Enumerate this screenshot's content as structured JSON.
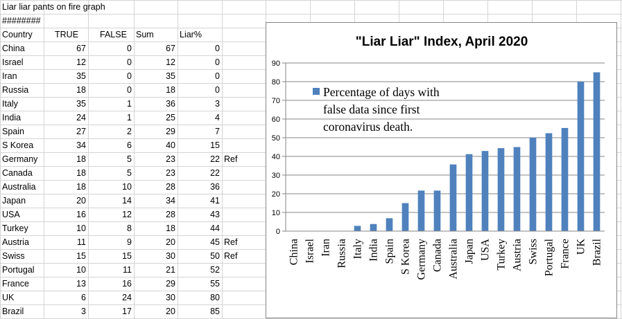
{
  "sheet": {
    "title": "Liar liar pants on fire graph",
    "hash_cell": "########",
    "headers": [
      "Country",
      "TRUE",
      "FALSE",
      "Sum",
      "Liar%"
    ],
    "rows": [
      {
        "country": "China",
        "true": "67",
        "false": "0",
        "sum": "67",
        "liar": "0",
        "note": ""
      },
      {
        "country": "Israel",
        "true": "12",
        "false": "0",
        "sum": "12",
        "liar": "0",
        "note": ""
      },
      {
        "country": "Iran",
        "true": "35",
        "false": "0",
        "sum": "35",
        "liar": "0",
        "note": ""
      },
      {
        "country": "Russia",
        "true": "18",
        "false": "0",
        "sum": "18",
        "liar": "0",
        "note": ""
      },
      {
        "country": "Italy",
        "true": "35",
        "false": "1",
        "sum": "36",
        "liar": "3",
        "note": ""
      },
      {
        "country": "India",
        "true": "24",
        "false": "1",
        "sum": "25",
        "liar": "4",
        "note": ""
      },
      {
        "country": "Spain",
        "true": "27",
        "false": "2",
        "sum": "29",
        "liar": "7",
        "note": ""
      },
      {
        "country": "S Korea",
        "true": "34",
        "false": "6",
        "sum": "40",
        "liar": "15",
        "note": ""
      },
      {
        "country": "Germany",
        "true": "18",
        "false": "5",
        "sum": "23",
        "liar": "22",
        "note": "Ref"
      },
      {
        "country": "Canada",
        "true": "18",
        "false": "5",
        "sum": "23",
        "liar": "22",
        "note": ""
      },
      {
        "country": "Australia",
        "true": "18",
        "false": "10",
        "sum": "28",
        "liar": "36",
        "note": ""
      },
      {
        "country": "Japan",
        "true": "20",
        "false": "14",
        "sum": "34",
        "liar": "41",
        "note": ""
      },
      {
        "country": "USA",
        "true": "16",
        "false": "12",
        "sum": "28",
        "liar": "43",
        "note": ""
      },
      {
        "country": "Turkey",
        "true": "10",
        "false": "8",
        "sum": "18",
        "liar": "44",
        "note": ""
      },
      {
        "country": "Austria",
        "true": "11",
        "false": "9",
        "sum": "20",
        "liar": "45",
        "note": "Ref"
      },
      {
        "country": "Swiss",
        "true": "15",
        "false": "15",
        "sum": "30",
        "liar": "50",
        "note": "Ref"
      },
      {
        "country": "Portugal",
        "true": "10",
        "false": "11",
        "sum": "21",
        "liar": "52",
        "note": ""
      },
      {
        "country": "France",
        "true": "13",
        "false": "16",
        "sum": "29",
        "liar": "55",
        "note": ""
      },
      {
        "country": "UK",
        "true": "6",
        "false": "24",
        "sum": "30",
        "liar": "80",
        "note": ""
      },
      {
        "country": "Brazil",
        "true": "3",
        "false": "17",
        "sum": "20",
        "liar": "85",
        "note": ""
      }
    ]
  },
  "chart_data": {
    "type": "bar",
    "title": "\"Liar Liar\" Index, April 2020",
    "categories": [
      "China",
      "Israel",
      "Iran",
      "Russia",
      "Italy",
      "India",
      "Spain",
      "S Korea",
      "Germany",
      "Canada",
      "Australia",
      "Japan",
      "USA",
      "Turkey",
      "Austria",
      "Swiss",
      "Portugal",
      "France",
      "UK",
      "Brazil"
    ],
    "series": [
      {
        "name": "Percentage of days with false data since first coronavirus death.",
        "values": [
          0,
          0,
          0,
          0,
          2.8,
          3.8,
          6.9,
          15,
          21.7,
          21.7,
          35.7,
          41.2,
          42.9,
          44.4,
          45,
          50,
          52.4,
          55.2,
          80,
          85
        ]
      }
    ],
    "legend_lines": [
      "Percentage of days with",
      "false data since first",
      "coronavirus death."
    ],
    "yticks": [
      "0",
      "10",
      "20",
      "30",
      "40",
      "50",
      "60",
      "70",
      "80",
      "90"
    ],
    "ylim": [
      0,
      90
    ],
    "grid": true,
    "legend_position": "top-left",
    "bar_color": "#4F81BD"
  }
}
